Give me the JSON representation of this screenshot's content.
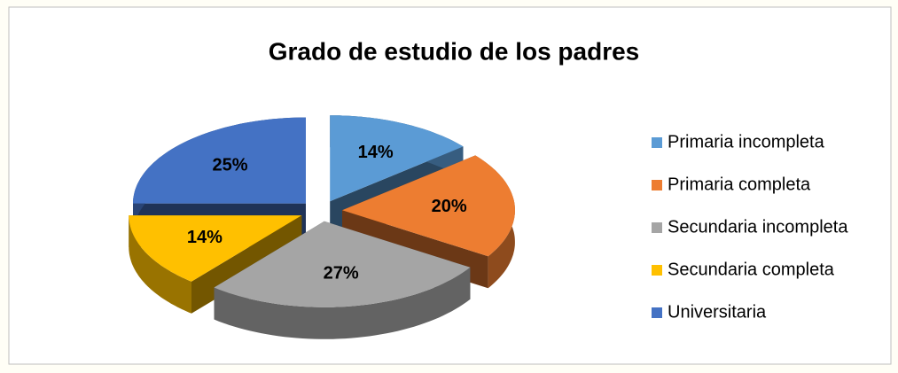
{
  "chart_data": {
    "type": "pie",
    "title": "Grado de estudio de los padres",
    "categories": [
      "Primaria incompleta",
      "Primaria completa",
      "Secundaria incompleta",
      "Secundaria completa",
      "Universitaria"
    ],
    "values": [
      14,
      20,
      27,
      14,
      25
    ],
    "value_labels": [
      "14%",
      "20%",
      "27%",
      "14%",
      "25%"
    ],
    "colors": [
      "#5b9bd5",
      "#ed7d31",
      "#a5a5a5",
      "#ffc000",
      "#4472c4"
    ],
    "legend": "right"
  }
}
